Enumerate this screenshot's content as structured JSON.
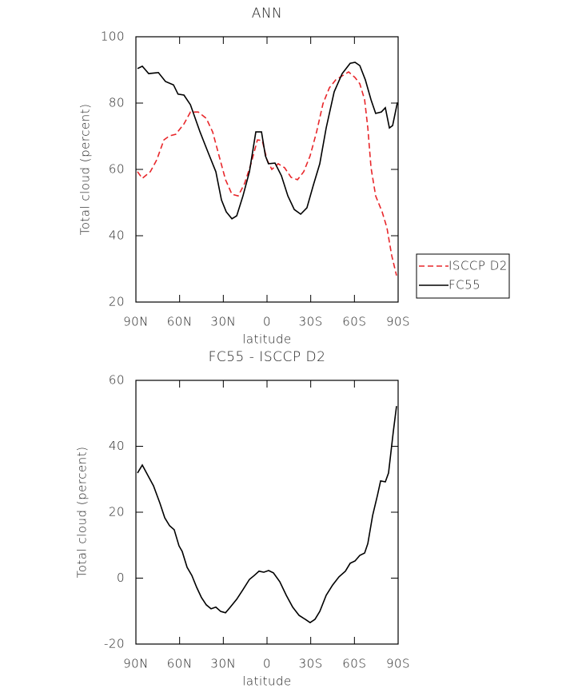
{
  "chart_data": [
    {
      "type": "line",
      "title": "ANN",
      "x_label": "latitude",
      "y_label": "Total cloud (percent)",
      "xlim": [
        90,
        -90
      ],
      "ylim": [
        20,
        100
      ],
      "xticks": [
        {
          "value": 90,
          "label": "90N"
        },
        {
          "value": 60,
          "label": "60N"
        },
        {
          "value": 30,
          "label": "30N"
        },
        0,
        {
          "value": -30,
          "label": "30S"
        },
        {
          "value": -60,
          "label": "60S"
        },
        {
          "value": -90,
          "label": "90S"
        }
      ],
      "yticks": [
        20,
        40,
        60,
        80,
        100
      ],
      "legend": "right",
      "series": [
        {
          "name": "ISCCP D2",
          "color": "#e8262a",
          "line_style": "dashed",
          "x": [
            88.9,
            85.6,
            80.1,
            75.7,
            70.8,
            67,
            62.6,
            57,
            52.6,
            47.2,
            41.7,
            37.3,
            32.9,
            28.5,
            24.1,
            19.8,
            15.4,
            11,
            6.6,
            3.3,
            0,
            -3.3,
            -7.7,
            -12.1,
            -16.5,
            -20.9,
            -25.2,
            -29.6,
            -34,
            -38.4,
            -42.8,
            -47.2,
            -51.6,
            -56,
            -60.4,
            -63.7,
            -67,
            -69.2,
            -71.4,
            -74.6,
            -79,
            -82.3,
            -85.6,
            -88.9
          ],
          "values": [
            59.3,
            57.3,
            59.3,
            62.9,
            68.9,
            70.1,
            70.6,
            73.7,
            77.3,
            77.3,
            75.4,
            71.3,
            64.1,
            56.9,
            52.5,
            52,
            55.7,
            61.7,
            68.9,
            68.7,
            62.9,
            60,
            61.7,
            60.5,
            57.6,
            56.9,
            59.3,
            64.1,
            71.3,
            79.8,
            84.6,
            87,
            88.2,
            89.4,
            87.7,
            85.8,
            81,
            72.5,
            60.5,
            52,
            47.2,
            42.4,
            34,
            28
          ]
        },
        {
          "name": "FC55",
          "color": "#000000",
          "line_style": "solid",
          "x": [
            88.9,
            85.6,
            81.2,
            74.6,
            69.7,
            64.2,
            61.1,
            57,
            52.6,
            46,
            40.6,
            35.1,
            31.3,
            28,
            24.1,
            20.8,
            16.5,
            12.1,
            7.7,
            3.8,
            1.1,
            -1,
            -5.5,
            -9.9,
            -14.3,
            -18.7,
            -23.1,
            -27.4,
            -31.8,
            -36.2,
            -40.6,
            -46.1,
            -51.6,
            -57.1,
            -60.4,
            -63.7,
            -67.5,
            -71.4,
            -74.6,
            -78.5,
            -81.2,
            -84,
            -86.2,
            -89.5
          ],
          "values": [
            90.4,
            91.1,
            88.9,
            89.2,
            86.5,
            85.5,
            82.7,
            82.4,
            79.5,
            71.3,
            65.3,
            59.3,
            50.8,
            47.2,
            45.1,
            46,
            52,
            59.3,
            71.3,
            71.3,
            64.1,
            61.7,
            61.9,
            58.1,
            52,
            47.9,
            46.5,
            48.4,
            55.2,
            61.7,
            72.5,
            83.4,
            88.9,
            92,
            92.3,
            91.3,
            87,
            81,
            76.9,
            77.3,
            78.6,
            72.5,
            73.2,
            80.2
          ]
        }
      ]
    },
    {
      "type": "line",
      "title": "FC55 - ISCCP D2",
      "x_label": "latitude",
      "y_label": "Total cloud (percent)",
      "xlim": [
        90,
        -90
      ],
      "ylim": [
        -20,
        60
      ],
      "xticks": [
        {
          "value": 90,
          "label": "90N"
        },
        {
          "value": 60,
          "label": "60N"
        },
        {
          "value": 30,
          "label": "30N"
        },
        0,
        {
          "value": -30,
          "label": "30S"
        },
        {
          "value": -60,
          "label": "60S"
        },
        {
          "value": -90,
          "label": "90S"
        }
      ],
      "yticks": [
        -20,
        0,
        20,
        40,
        60
      ],
      "series": [
        {
          "color": "#000000",
          "line_style": "solid",
          "x": [
            88.9,
            85.6,
            81.2,
            77.9,
            73.5,
            70.2,
            66.9,
            63.7,
            60.4,
            58.2,
            54.9,
            51.6,
            48.3,
            45,
            41.7,
            38.4,
            35.1,
            31.8,
            28.5,
            25.2,
            20.8,
            16.5,
            12.1,
            8.8,
            5.5,
            2.2,
            -1.1,
            -4.4,
            -8.8,
            -13.2,
            -17.6,
            -22,
            -26.3,
            -29.6,
            -32.9,
            -36.2,
            -40.6,
            -45,
            -49.4,
            -53.8,
            -57.1,
            -60.4,
            -63.7,
            -67,
            -69.2,
            -72.5,
            -75.8,
            -78,
            -81.2,
            -83.4,
            -86.7,
            -88.9
          ],
          "values": [
            31.9,
            34.3,
            30.7,
            28,
            22.7,
            18.3,
            15.9,
            14.7,
            9.8,
            8.1,
            3.3,
            0.8,
            -2.8,
            -5.9,
            -8.1,
            -9.3,
            -8.8,
            -10.1,
            -10.5,
            -8.8,
            -6.4,
            -3.5,
            -0.4,
            0.8,
            2.1,
            1.8,
            2.3,
            1.6,
            -1.1,
            -5.2,
            -8.8,
            -11.3,
            -12.5,
            -13.5,
            -12.5,
            -10.1,
            -5.2,
            -2.1,
            0.4,
            2.1,
            4.5,
            5.2,
            6.9,
            7.6,
            10.5,
            19,
            25.1,
            29.5,
            29.2,
            31.9,
            44.5,
            52.2
          ]
        }
      ]
    }
  ]
}
